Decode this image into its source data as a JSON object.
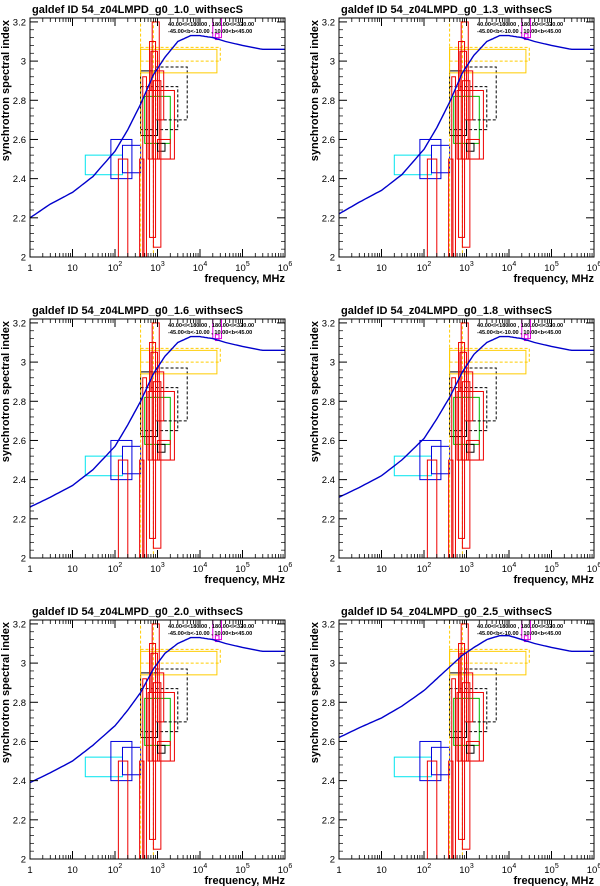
{
  "figure": {
    "xlabel": "frequency, MHz",
    "ylabel": "synchrotron spectral index",
    "region_labels": [
      "40.00<l<180.00 , 180.00<l<320.00",
      "-45.00<b<-10.00 , 10.00<b<45.00"
    ],
    "xticks": [
      {
        "base": "1",
        "exp": ""
      },
      {
        "base": "10",
        "exp": ""
      },
      {
        "base": "10",
        "exp": "2"
      },
      {
        "base": "10",
        "exp": "3"
      },
      {
        "base": "10",
        "exp": "4"
      },
      {
        "base": "10",
        "exp": "5"
      },
      {
        "base": "10",
        "exp": "6"
      }
    ],
    "yticks": [
      "2",
      "2.2",
      "2.4",
      "2.6",
      "2.8",
      "3",
      "3.2"
    ]
  },
  "chart_data": [
    {
      "type": "line",
      "title": "galdef ID 54_z04LMPD_g0_1.0_withsecS",
      "xlabel": "frequency, MHz",
      "ylabel": "synchrotron spectral index",
      "xlim": [
        1,
        1000000
      ],
      "ylim": [
        2.0,
        3.22
      ],
      "xscale": "log",
      "grid": false,
      "series": [
        {
          "color": "#0000cc",
          "x": [
            1,
            3,
            10,
            30,
            100,
            200,
            400,
            800,
            1500,
            3000,
            6000,
            10000,
            20000,
            40000,
            100000,
            300000,
            1000000
          ],
          "y": [
            2.2,
            2.27,
            2.33,
            2.41,
            2.54,
            2.65,
            2.78,
            2.93,
            3.02,
            3.1,
            3.13,
            3.13,
            3.12,
            3.1,
            3.08,
            3.06,
            3.06
          ]
        }
      ]
    },
    {
      "type": "line",
      "title": "galdef ID 54_z04LMPD_g0_1.3_withsecS",
      "xlabel": "frequency, MHz",
      "ylabel": "synchrotron spectral index",
      "xlim": [
        1,
        1000000
      ],
      "ylim": [
        2.0,
        3.22
      ],
      "xscale": "log",
      "grid": false,
      "series": [
        {
          "color": "#0000cc",
          "x": [
            1,
            3,
            10,
            30,
            100,
            200,
            400,
            800,
            1500,
            3000,
            6000,
            10000,
            20000,
            40000,
            100000,
            300000,
            1000000
          ],
          "y": [
            2.22,
            2.28,
            2.34,
            2.42,
            2.55,
            2.66,
            2.79,
            2.94,
            3.03,
            3.1,
            3.13,
            3.13,
            3.12,
            3.1,
            3.08,
            3.06,
            3.06
          ]
        }
      ]
    },
    {
      "type": "line",
      "title": "galdef ID 54_z04LMPD_g0_1.6_withsecS",
      "xlabel": "frequency, MHz",
      "ylabel": "synchrotron spectral index",
      "xlim": [
        1,
        1000000
      ],
      "ylim": [
        2.0,
        3.22
      ],
      "xscale": "log",
      "grid": false,
      "series": [
        {
          "color": "#0000cc",
          "x": [
            1,
            3,
            10,
            30,
            100,
            200,
            400,
            800,
            1500,
            3000,
            6000,
            10000,
            20000,
            40000,
            100000,
            300000,
            1000000
          ],
          "y": [
            2.26,
            2.31,
            2.37,
            2.45,
            2.57,
            2.68,
            2.8,
            2.94,
            3.03,
            3.1,
            3.13,
            3.13,
            3.12,
            3.1,
            3.08,
            3.06,
            3.06
          ]
        }
      ]
    },
    {
      "type": "line",
      "title": "galdef ID 54_z04LMPD_g0_1.8_withsecS",
      "xlabel": "frequency, MHz",
      "ylabel": "synchrotron spectral index",
      "xlim": [
        1,
        1000000
      ],
      "ylim": [
        2.0,
        3.22
      ],
      "xscale": "log",
      "grid": false,
      "series": [
        {
          "color": "#0000cc",
          "x": [
            1,
            3,
            10,
            30,
            100,
            200,
            400,
            800,
            1500,
            3000,
            6000,
            10000,
            20000,
            40000,
            100000,
            300000,
            1000000
          ],
          "y": [
            2.31,
            2.36,
            2.42,
            2.5,
            2.61,
            2.71,
            2.82,
            2.95,
            3.04,
            3.1,
            3.13,
            3.13,
            3.12,
            3.1,
            3.08,
            3.06,
            3.06
          ]
        }
      ]
    },
    {
      "type": "line",
      "title": "galdef ID 54_z04LMPD_g0_2.0_withsecS",
      "xlabel": "frequency, MHz",
      "ylabel": "synchrotron spectral index",
      "xlim": [
        1,
        1000000
      ],
      "ylim": [
        2.0,
        3.22
      ],
      "xscale": "log",
      "grid": false,
      "series": [
        {
          "color": "#0000cc",
          "x": [
            1,
            3,
            10,
            30,
            100,
            200,
            400,
            800,
            1500,
            3000,
            6000,
            10000,
            20000,
            40000,
            100000,
            300000,
            1000000
          ],
          "y": [
            2.39,
            2.44,
            2.5,
            2.58,
            2.68,
            2.76,
            2.85,
            2.97,
            3.05,
            3.1,
            3.13,
            3.13,
            3.12,
            3.1,
            3.08,
            3.06,
            3.06
          ]
        }
      ]
    },
    {
      "type": "line",
      "title": "galdef ID 54_z04LMPD_g0_2.5_withsecS",
      "xlabel": "frequency, MHz",
      "ylabel": "synchrotron spectral index",
      "xlim": [
        1,
        1000000
      ],
      "ylim": [
        2.0,
        3.22
      ],
      "xscale": "log",
      "grid": false,
      "series": [
        {
          "color": "#0000cc",
          "x": [
            1,
            3,
            10,
            30,
            100,
            200,
            400,
            800,
            1500,
            3000,
            6000,
            10000,
            20000,
            40000,
            100000,
            300000,
            1000000
          ],
          "y": [
            2.62,
            2.67,
            2.72,
            2.78,
            2.86,
            2.92,
            2.98,
            3.04,
            3.08,
            3.12,
            3.14,
            3.14,
            3.12,
            3.1,
            3.08,
            3.06,
            3.06
          ]
        }
      ]
    }
  ],
  "measurements": [
    {
      "x": [
        20,
        150
      ],
      "y": [
        2.42,
        2.52
      ],
      "color": "#00e5ee",
      "dash": false
    },
    {
      "x": [
        80,
        250
      ],
      "y": [
        2.4,
        2.6
      ],
      "color": "#0000dd",
      "dash": false
    },
    {
      "x": [
        150,
        400
      ],
      "y": [
        2.43,
        2.57
      ],
      "color": "#0000dd",
      "dash": false
    },
    {
      "x": [
        120,
        200
      ],
      "y": [
        2.0,
        2.5
      ],
      "color": "#ee0000",
      "dash": false
    },
    {
      "x": [
        380,
        480
      ],
      "y": [
        2.0,
        2.5
      ],
      "color": "#ee0000",
      "dash": false
    },
    {
      "x": [
        400,
        1000
      ],
      "y": [
        2.62,
        2.95
      ],
      "color": "#000000",
      "dash": false
    },
    {
      "x": [
        500,
        2000
      ],
      "y": [
        2.58,
        2.82
      ],
      "color": "#00bb00",
      "dash": false
    },
    {
      "x": [
        600,
        2500
      ],
      "y": [
        2.5,
        2.85
      ],
      "color": "#ee0000",
      "dash": false
    },
    {
      "x": [
        400,
        3000
      ],
      "y": [
        2.65,
        2.87
      ],
      "color": "#000000",
      "dash": true
    },
    {
      "x": [
        900,
        5000
      ],
      "y": [
        2.7,
        2.97
      ],
      "color": "#000000",
      "dash": true
    },
    {
      "x": [
        1000,
        2000
      ],
      "y": [
        2.5,
        2.6
      ],
      "color": "#ee0000",
      "dash": false
    },
    {
      "x": [
        1000,
        1500
      ],
      "y": [
        2.54,
        2.58
      ],
      "color": "#000000",
      "dash": false
    },
    {
      "x": [
        400,
        25000
      ],
      "y": [
        2.94,
        3.06
      ],
      "color": "#ffcc00",
      "dash": false
    },
    {
      "x": [
        400,
        30000
      ],
      "y": [
        3.0,
        3.07
      ],
      "color": "#ffcc00",
      "dash": true
    },
    {
      "x": [
        400,
        800
      ],
      "y": [
        2.0,
        3.22
      ],
      "color": "#ffcc00",
      "dash": true
    },
    {
      "x": [
        450,
        550
      ],
      "y": [
        2.0,
        2.92
      ],
      "color": "#ee0000",
      "dash": false
    },
    {
      "x": [
        650,
        900
      ],
      "y": [
        2.1,
        3.1
      ],
      "color": "#ee0000",
      "dash": false
    },
    {
      "x": [
        750,
        1100
      ],
      "y": [
        2.5,
        3.2
      ],
      "color": "#ee0000",
      "dash": false
    },
    {
      "x": [
        700,
        1000
      ],
      "y": [
        2.85,
        3.05
      ],
      "color": "#ee0000",
      "dash": false
    },
    {
      "x": [
        800,
        1200
      ],
      "y": [
        2.05,
        2.9
      ],
      "color": "#ee0000",
      "dash": false
    },
    {
      "x": [
        1000,
        1400
      ],
      "y": [
        2.7,
        2.95
      ],
      "color": "#ee0000",
      "dash": false
    },
    {
      "x": [
        20000,
        32000
      ],
      "y": [
        3.12,
        3.22
      ],
      "color": "#dd00dd",
      "dash": false
    },
    {
      "x": [
        23000,
        28000
      ],
      "y": [
        3.11,
        3.14
      ],
      "color": "#dd00dd",
      "dash": false
    }
  ]
}
